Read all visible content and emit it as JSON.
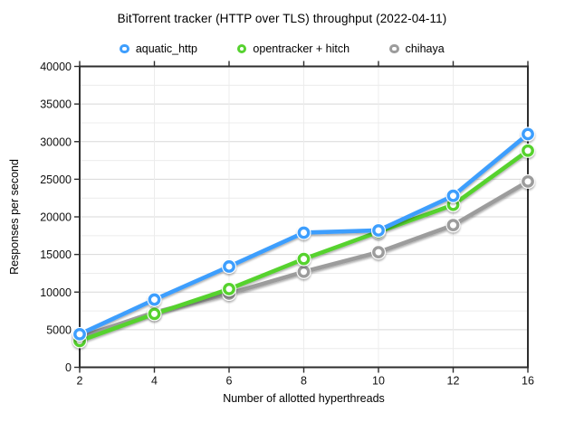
{
  "chart_data": {
    "type": "line",
    "title": "BitTorrent tracker (HTTP over TLS) throughput (2022-04-11)",
    "xlabel": "Number of allotted hyperthreads",
    "ylabel": "Responses per second",
    "categories": [
      "2",
      "4",
      "6",
      "8",
      "10",
      "12",
      "16"
    ],
    "series": [
      {
        "name": "aquatic_http",
        "color": "#3E9EFD",
        "values": [
          4400,
          9000,
          13400,
          17900,
          18200,
          22800,
          31000
        ]
      },
      {
        "name": "opentracker + hitch",
        "color": "#56D22F",
        "values": [
          3500,
          7100,
          10400,
          14400,
          18000,
          21600,
          28800
        ]
      },
      {
        "name": "chihaya",
        "color": "#9C9C9C",
        "values": [
          4000,
          7300,
          9800,
          12700,
          15300,
          18900,
          24700
        ]
      }
    ],
    "ylim": [
      0,
      40000
    ],
    "y_major_step": 5000,
    "y_minor_step": 2500,
    "y_tick_labels": [
      "0",
      "5000",
      "10000",
      "15000",
      "20000",
      "25000",
      "30000",
      "35000",
      "40000"
    ],
    "grid": true,
    "legend_position": "top",
    "background": "#ffffff",
    "axis_color": "#2e2e2e",
    "major_grid_color": "#d8d8d8",
    "minor_grid_color": "#ececec",
    "tick_label_color": "#111111"
  }
}
